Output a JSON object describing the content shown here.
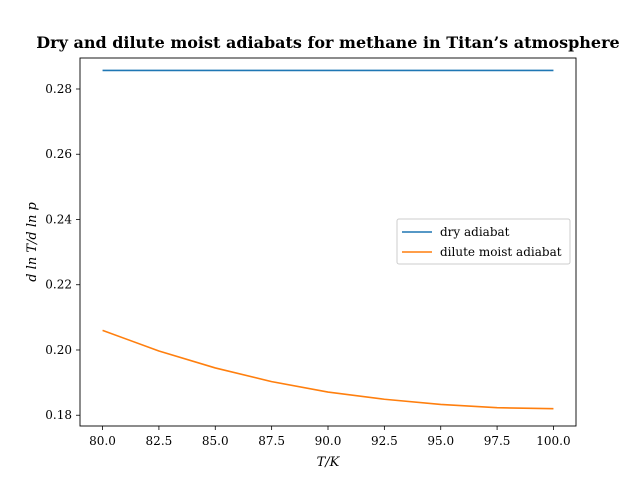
{
  "chart_data": {
    "type": "line",
    "title": "Dry and dilute moist adiabats for methane in Titan’s atmosphere",
    "xlabel": "T/K",
    "ylabel": "d ln T/d ln p",
    "xlim": [
      79.0,
      101.0
    ],
    "ylim": [
      0.1767,
      0.2895
    ],
    "xticks": [
      80.0,
      82.5,
      85.0,
      87.5,
      90.0,
      92.5,
      95.0,
      97.5,
      100.0
    ],
    "xtick_labels": [
      "80.0",
      "82.5",
      "85.0",
      "87.5",
      "90.0",
      "92.5",
      "95.0",
      "97.5",
      "100.0"
    ],
    "yticks": [
      0.18,
      0.2,
      0.22,
      0.24,
      0.26,
      0.28
    ],
    "ytick_labels": [
      "0.18",
      "0.20",
      "0.22",
      "0.24",
      "0.26",
      "0.28"
    ],
    "legend_position": "center-right",
    "grid": false,
    "series": [
      {
        "name": "dry adiabat",
        "color": "#1f77b4",
        "x": [
          80.0,
          82.5,
          85.0,
          87.5,
          90.0,
          92.5,
          95.0,
          97.5,
          100.0
        ],
        "y": [
          0.2857,
          0.2857,
          0.2857,
          0.2857,
          0.2857,
          0.2857,
          0.2857,
          0.2857,
          0.2857
        ]
      },
      {
        "name": "dilute moist adiabat",
        "color": "#ff7f0e",
        "x": [
          80.0,
          82.5,
          85.0,
          87.5,
          90.0,
          92.5,
          95.0,
          97.5,
          100.0
        ],
        "y": [
          0.206,
          0.1997,
          0.1945,
          0.1903,
          0.1871,
          0.1849,
          0.1833,
          0.1823,
          0.182
        ]
      }
    ]
  }
}
